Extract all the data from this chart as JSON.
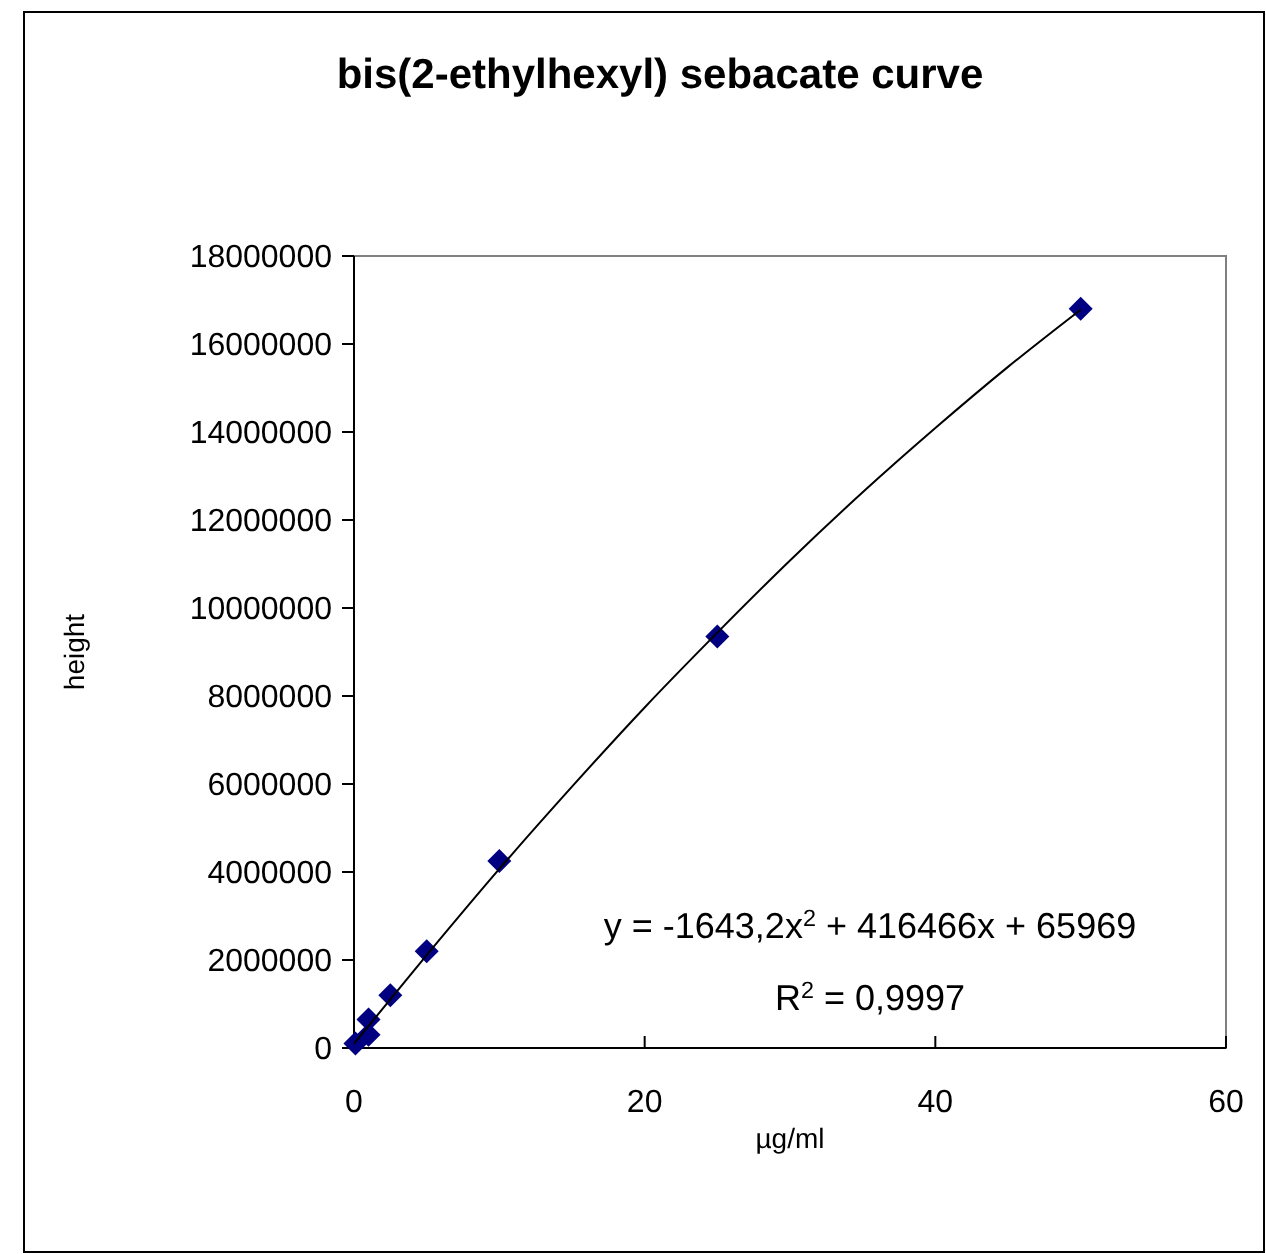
{
  "chart_data": {
    "type": "scatter",
    "title": "bis(2-ethylhexyl) sebacate curve",
    "xlabel": "µg/ml",
    "ylabel": "height",
    "xlim": [
      0,
      60
    ],
    "xticks": [
      0,
      20,
      40,
      60
    ],
    "ylim": [
      0,
      18000000
    ],
    "yticks": [
      0,
      2000000,
      4000000,
      6000000,
      8000000,
      10000000,
      12000000,
      14000000,
      16000000,
      18000000
    ],
    "grid": false,
    "annotations": [
      "y = -1643,2x$^{2}$ + 416466x + 65969",
      "R$^{2}$ = 0,9997"
    ],
    "series": [
      {
        "type": "scatter",
        "color": "#000080",
        "marker": "diamond",
        "x": [
          0.1,
          1,
          1,
          2.5,
          5,
          10,
          25,
          50
        ],
        "values": [
          100000,
          300000,
          650000,
          1200000,
          2200000,
          4250000,
          9350000,
          16800000
        ]
      },
      {
        "type": "line",
        "color": "#000000",
        "line_style": "solid",
        "x": [
          0,
          5,
          10,
          15,
          20,
          25,
          30,
          35,
          40,
          45,
          50
        ],
        "values": [
          100000,
          2110000,
          4070000,
          5940000,
          7740000,
          9440000,
          11080000,
          12630000,
          14090000,
          15480000,
          16780000
        ]
      }
    ]
  }
}
